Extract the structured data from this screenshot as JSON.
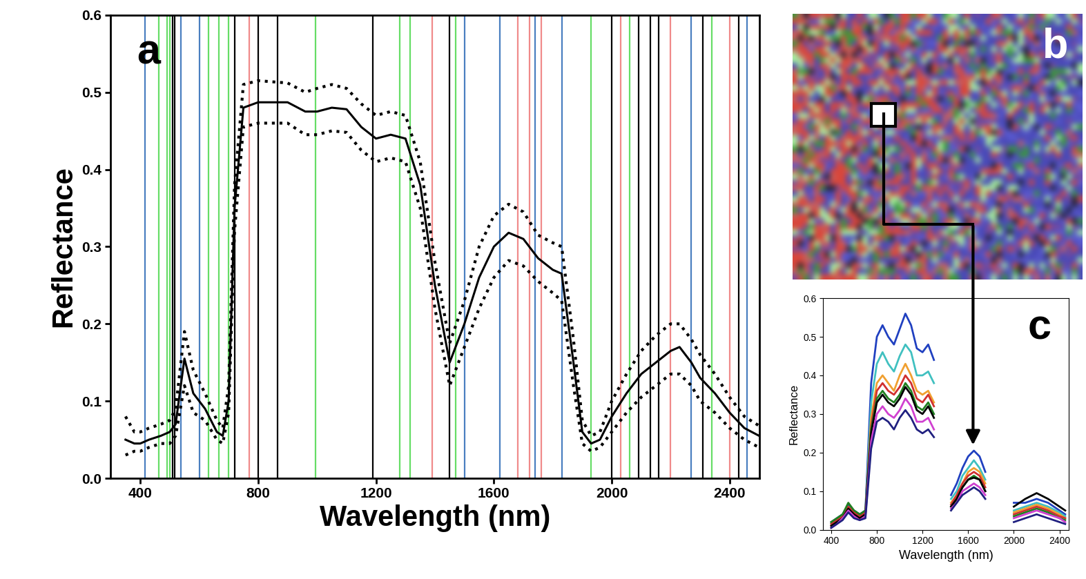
{
  "chart_data": [
    {
      "type": "line",
      "title": "a",
      "x_label": "Wavelength (nm)",
      "y_label": "Reflectance",
      "x": [
        350,
        380,
        400,
        430,
        470,
        500,
        520,
        550,
        580,
        620,
        660,
        680,
        700,
        720,
        750,
        800,
        900,
        960,
        1000,
        1050,
        1100,
        1150,
        1200,
        1250,
        1300,
        1350,
        1400,
        1450,
        1500,
        1550,
        1600,
        1650,
        1700,
        1750,
        1800,
        1830,
        1870,
        1900,
        1930,
        1960,
        2000,
        2050,
        2100,
        2150,
        2200,
        2230,
        2270,
        2300,
        2350,
        2400,
        2450,
        2500
      ],
      "series": [
        {
          "color": "#000000",
          "line_style": "solid",
          "values": [
            0.05,
            0.045,
            0.045,
            0.05,
            0.055,
            0.06,
            0.07,
            0.155,
            0.11,
            0.09,
            0.06,
            0.055,
            0.1,
            0.35,
            0.48,
            0.487,
            0.487,
            0.475,
            0.475,
            0.48,
            0.478,
            0.455,
            0.44,
            0.445,
            0.44,
            0.38,
            0.25,
            0.15,
            0.2,
            0.26,
            0.3,
            0.318,
            0.31,
            0.285,
            0.27,
            0.265,
            0.15,
            0.06,
            0.045,
            0.05,
            0.08,
            0.11,
            0.135,
            0.15,
            0.165,
            0.17,
            0.15,
            0.13,
            0.11,
            0.085,
            0.065,
            0.055
          ]
        },
        {
          "color": "#000000",
          "line_style": "dotted",
          "values": [
            0.08,
            0.06,
            0.06,
            0.065,
            0.07,
            0.075,
            0.09,
            0.19,
            0.14,
            0.11,
            0.075,
            0.065,
            0.12,
            0.38,
            0.51,
            0.515,
            0.512,
            0.5,
            0.505,
            0.51,
            0.505,
            0.485,
            0.47,
            0.475,
            0.47,
            0.41,
            0.28,
            0.175,
            0.23,
            0.3,
            0.34,
            0.355,
            0.345,
            0.315,
            0.305,
            0.3,
            0.18,
            0.075,
            0.055,
            0.06,
            0.1,
            0.135,
            0.165,
            0.185,
            0.2,
            0.2,
            0.18,
            0.16,
            0.135,
            0.105,
            0.08,
            0.068
          ]
        },
        {
          "color": "#000000",
          "line_style": "dotted",
          "values": [
            0.03,
            0.035,
            0.035,
            0.04,
            0.045,
            0.045,
            0.055,
            0.12,
            0.085,
            0.075,
            0.05,
            0.045,
            0.085,
            0.32,
            0.455,
            0.46,
            0.46,
            0.445,
            0.445,
            0.45,
            0.448,
            0.425,
            0.41,
            0.415,
            0.41,
            0.35,
            0.22,
            0.12,
            0.17,
            0.22,
            0.26,
            0.282,
            0.275,
            0.255,
            0.24,
            0.23,
            0.12,
            0.045,
            0.035,
            0.04,
            0.06,
            0.085,
            0.105,
            0.12,
            0.135,
            0.135,
            0.12,
            0.1,
            0.085,
            0.065,
            0.05,
            0.04
          ]
        }
      ],
      "bands": [
        {
          "color": "#4a7fc0",
          "x": [
            416,
            537,
            602,
            1500,
            1620,
            1740,
            1830,
            2270,
            2460
          ]
        },
        {
          "color": "#66dd66",
          "x": [
            463,
            490,
            500,
            632,
            667,
            700,
            995,
            1280,
            1315,
            1470,
            1930,
            2060,
            2340
          ]
        },
        {
          "color": "#f08a8a",
          "x": [
            770,
            1390,
            1680,
            1720,
            1760,
            2030,
            2200,
            2400
          ]
        },
        {
          "color": "#000000",
          "x": [
            510,
            516,
            720,
            800,
            865,
            1190,
            1450,
            2000,
            2090,
            2130,
            2160,
            2310,
            2430
          ]
        }
      ],
      "xlim": [
        300,
        2500
      ],
      "ylim": [
        0.0,
        0.6
      ],
      "xticks": [
        400,
        800,
        1200,
        1600,
        2000,
        2400
      ],
      "yticks": [
        0.0,
        0.1,
        0.2,
        0.3,
        0.4,
        0.5,
        0.6
      ]
    },
    {
      "type": "image",
      "title": "b"
    },
    {
      "type": "line",
      "title": "c",
      "x_label": "Wavelength (nm)",
      "y_label": "Reflectance",
      "x": [
        400,
        450,
        500,
        550,
        600,
        650,
        700,
        750,
        800,
        850,
        900,
        950,
        1000,
        1050,
        1100,
        1150,
        1200,
        1250,
        1300,
        1350,
        1400,
        1450,
        1500,
        1550,
        1600,
        1650,
        1700,
        1750,
        1800,
        1900,
        2000,
        2100,
        2200,
        2300,
        2400,
        2450
      ],
      "series": [
        {
          "color": "#2040c0",
          "values": [
            0.02,
            0.03,
            0.04,
            0.065,
            0.05,
            0.04,
            0.05,
            0.38,
            0.5,
            0.53,
            0.5,
            0.48,
            0.52,
            0.56,
            0.53,
            0.47,
            0.46,
            0.48,
            0.44,
            null,
            null,
            0.09,
            0.12,
            0.16,
            0.19,
            0.205,
            0.19,
            0.15,
            null,
            null,
            0.07,
            0.07,
            0.08,
            0.07,
            0.05,
            0.04
          ]
        },
        {
          "color": "#40c0c0",
          "values": [
            0.015,
            0.025,
            0.035,
            0.06,
            0.045,
            0.035,
            0.045,
            0.33,
            0.43,
            0.46,
            0.43,
            0.41,
            0.45,
            0.48,
            0.46,
            0.4,
            0.4,
            0.41,
            0.38,
            null,
            null,
            0.08,
            0.1,
            0.14,
            0.16,
            0.18,
            0.16,
            0.13,
            null,
            null,
            0.05,
            0.06,
            0.07,
            0.06,
            0.045,
            0.035
          ]
        },
        {
          "color": "#f0a030",
          "values": [
            0.01,
            0.02,
            0.03,
            0.05,
            0.04,
            0.03,
            0.04,
            0.29,
            0.38,
            0.4,
            0.38,
            0.36,
            0.4,
            0.43,
            0.4,
            0.36,
            0.35,
            0.36,
            0.33,
            null,
            null,
            0.07,
            0.09,
            0.12,
            0.15,
            0.16,
            0.15,
            0.12,
            null,
            null,
            0.045,
            0.055,
            0.065,
            0.055,
            0.04,
            0.03
          ]
        },
        {
          "color": "#d03030",
          "values": [
            0.015,
            0.025,
            0.035,
            0.06,
            0.045,
            0.035,
            0.045,
            0.27,
            0.36,
            0.38,
            0.36,
            0.35,
            0.37,
            0.4,
            0.38,
            0.34,
            0.33,
            0.35,
            0.32,
            null,
            null,
            0.065,
            0.09,
            0.12,
            0.14,
            0.15,
            0.14,
            0.11,
            null,
            null,
            0.04,
            0.05,
            0.06,
            0.05,
            0.035,
            0.03
          ]
        },
        {
          "color": "#208020",
          "values": [
            0.02,
            0.03,
            0.04,
            0.07,
            0.05,
            0.04,
            0.05,
            0.26,
            0.34,
            0.36,
            0.34,
            0.33,
            0.35,
            0.38,
            0.36,
            0.32,
            0.31,
            0.33,
            0.3,
            null,
            null,
            0.06,
            0.08,
            0.11,
            0.13,
            0.14,
            0.13,
            0.1,
            null,
            null,
            0.035,
            0.045,
            0.055,
            0.045,
            0.03,
            0.025
          ]
        },
        {
          "color": "#000000",
          "values": [
            0.01,
            0.02,
            0.03,
            0.055,
            0.04,
            0.03,
            0.04,
            0.25,
            0.33,
            0.35,
            0.33,
            0.32,
            0.34,
            0.37,
            0.35,
            0.31,
            0.3,
            0.32,
            0.29,
            null,
            null,
            0.06,
            0.08,
            0.11,
            0.13,
            0.135,
            0.13,
            0.1,
            null,
            null,
            0.06,
            0.08,
            0.095,
            0.08,
            0.06,
            0.05
          ]
        },
        {
          "color": "#d040d0",
          "values": [
            0.005,
            0.015,
            0.03,
            0.05,
            0.035,
            0.025,
            0.035,
            0.23,
            0.3,
            0.32,
            0.3,
            0.29,
            0.31,
            0.34,
            0.32,
            0.28,
            0.28,
            0.29,
            0.26,
            null,
            null,
            0.055,
            0.07,
            0.1,
            0.11,
            0.12,
            0.11,
            0.09,
            null,
            null,
            0.03,
            0.04,
            0.05,
            0.04,
            0.03,
            0.02
          ]
        },
        {
          "color": "#202080",
          "values": [
            0.005,
            0.015,
            0.025,
            0.045,
            0.03,
            0.025,
            0.03,
            0.21,
            0.28,
            0.29,
            0.28,
            0.26,
            0.29,
            0.31,
            0.29,
            0.26,
            0.25,
            0.26,
            0.24,
            null,
            null,
            0.05,
            0.07,
            0.09,
            0.1,
            0.11,
            0.1,
            0.08,
            null,
            null,
            0.02,
            0.03,
            0.04,
            0.03,
            0.02,
            0.015
          ]
        }
      ],
      "xlim": [
        330,
        2480
      ],
      "ylim": [
        0.0,
        0.6
      ],
      "xticks": [
        400,
        800,
        1200,
        1600,
        2000,
        2400
      ],
      "yticks": [
        0.0,
        0.1,
        0.2,
        0.3,
        0.4,
        0.5,
        0.6
      ]
    }
  ]
}
